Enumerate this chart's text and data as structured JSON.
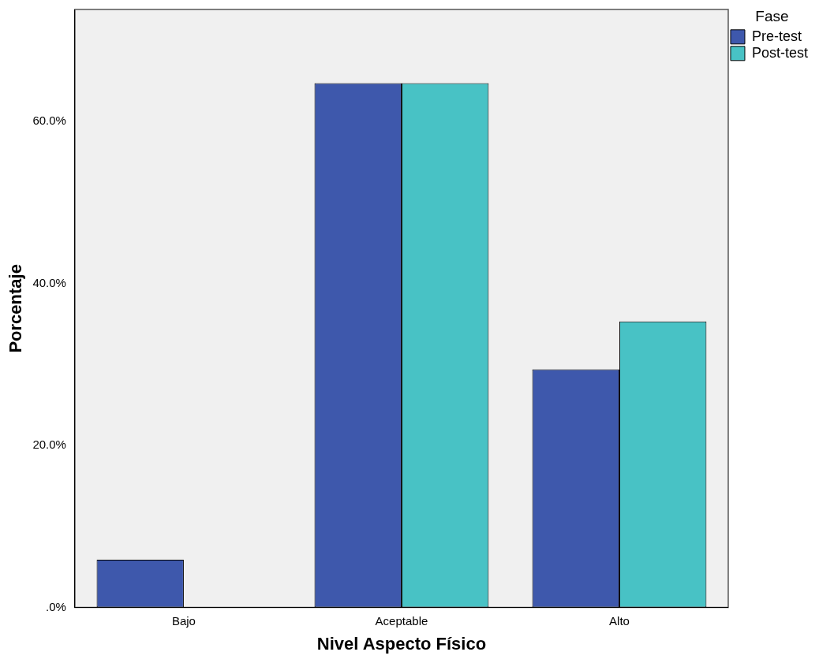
{
  "chart_data": {
    "type": "bar",
    "xlabel": "Nivel Aspecto Físico",
    "ylabel": "Porcentaje",
    "legend_title": "Fase",
    "categories": [
      "Bajo",
      "Aceptable",
      "Alto"
    ],
    "series": [
      {
        "name": "Pre-test",
        "color": "#3e58ac",
        "values": [
          5.9,
          64.7,
          29.4
        ]
      },
      {
        "name": "Post-test",
        "color": "#48c2c5",
        "values": [
          0,
          64.7,
          35.3
        ]
      }
    ],
    "ylim": [
      0,
      73.8
    ],
    "yticks": [
      {
        "value": 0,
        "label": ".0%"
      },
      {
        "value": 20,
        "label": "20.0%"
      },
      {
        "value": 40,
        "label": "40.0%"
      },
      {
        "value": 60,
        "label": "60.0%"
      }
    ],
    "grid": false,
    "legend": "top right"
  }
}
